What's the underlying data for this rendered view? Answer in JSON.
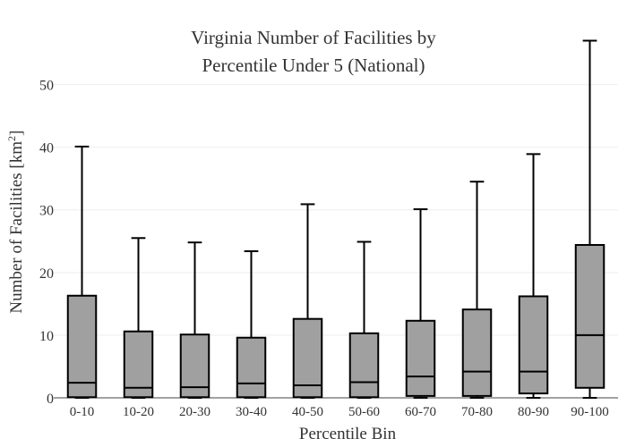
{
  "chart_data": {
    "type": "box",
    "title_lines": [
      "Virginia Number of Facilities by",
      "Percentile Under 5 (National)"
    ],
    "xlabel": "Percentile Bin",
    "ylabel": "Number of Facilities",
    "ylabel_unit_base": "km",
    "ylabel_unit_exp": "2",
    "ylim": [
      0,
      57.5
    ],
    "yticks": [
      0,
      10,
      20,
      30,
      40,
      50
    ],
    "grid": true,
    "box_color": "#a0a0a0",
    "line_color": "#000000",
    "categories": [
      "0-10",
      "10-20",
      "20-30",
      "30-40",
      "40-50",
      "50-60",
      "60-70",
      "70-80",
      "80-90",
      "90-100"
    ],
    "boxes": [
      {
        "min": 0.0,
        "q1": 0.1,
        "median": 2.4,
        "q3": 16.3,
        "max": 40.1
      },
      {
        "min": 0.0,
        "q1": 0.1,
        "median": 1.6,
        "q3": 10.6,
        "max": 25.5
      },
      {
        "min": 0.0,
        "q1": 0.1,
        "median": 1.7,
        "q3": 10.1,
        "max": 24.8
      },
      {
        "min": 0.0,
        "q1": 0.1,
        "median": 2.3,
        "q3": 9.6,
        "max": 23.4
      },
      {
        "min": 0.0,
        "q1": 0.1,
        "median": 2.0,
        "q3": 12.6,
        "max": 30.9
      },
      {
        "min": 0.0,
        "q1": 0.1,
        "median": 2.5,
        "q3": 10.3,
        "max": 24.9
      },
      {
        "min": 0.0,
        "q1": 0.3,
        "median": 3.4,
        "q3": 12.3,
        "max": 30.1
      },
      {
        "min": 0.0,
        "q1": 0.3,
        "median": 4.2,
        "q3": 14.1,
        "max": 34.5
      },
      {
        "min": 0.0,
        "q1": 0.7,
        "median": 4.2,
        "q3": 16.2,
        "max": 38.9
      },
      {
        "min": 0.0,
        "q1": 1.6,
        "median": 10.0,
        "q3": 24.4,
        "max": 57.0
      }
    ]
  }
}
